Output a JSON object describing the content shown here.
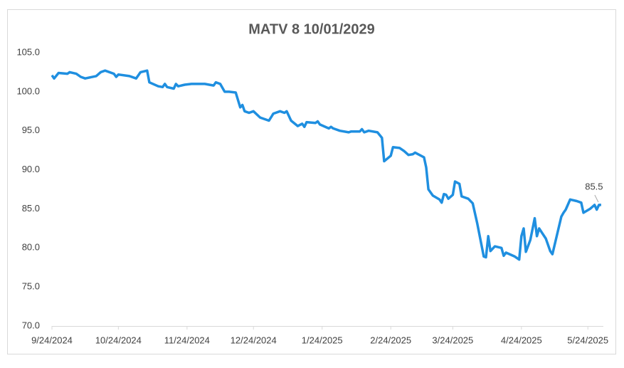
{
  "chart_data": {
    "type": "line",
    "title": "MATV 8 10/01/2029",
    "x": [
      "9/24/2024",
      "9/25/2024",
      "9/27/2024",
      "10/1/2024",
      "10/2/2024",
      "10/5/2024",
      "10/7/2024",
      "10/9/2024",
      "10/14/2024",
      "10/16/2024",
      "10/18/2024",
      "10/22/2024",
      "10/23/2024",
      "10/24/2024",
      "10/29/2024",
      "11/1/2024",
      "11/3/2024",
      "11/6/2024",
      "11/7/2024",
      "11/11/2024",
      "11/13/2024",
      "11/14/2024",
      "11/15/2024",
      "11/18/2024",
      "11/19/2024",
      "11/20/2024",
      "11/23/2024",
      "11/26/2024",
      "12/2/2024",
      "12/6/2024",
      "12/7/2024",
      "12/9/2024",
      "12/11/2024",
      "12/13/2024",
      "12/16/2024",
      "12/18/2024",
      "12/19/2024",
      "12/20/2024",
      "12/22/2024",
      "12/24/2024",
      "12/27/2024",
      "12/31/2024",
      "1/2/2025",
      "1/5/2025",
      "1/7/2025",
      "1/8/2025",
      "1/10/2025",
      "1/13/2025",
      "1/15/2025",
      "1/16/2025",
      "1/17/2025",
      "1/21/2025",
      "1/22/2025",
      "1/23/2025",
      "1/27/2025",
      "1/28/2025",
      "1/29/2025",
      "2/1/2025",
      "2/5/2025",
      "2/6/2025",
      "2/10/2025",
      "2/11/2025",
      "2/12/2025",
      "2/14/2025",
      "2/18/2025",
      "2/20/2025",
      "2/21/2025",
      "2/24/2025",
      "2/25/2025",
      "2/28/2025",
      "3/2/2025",
      "3/4/2025",
      "3/6/2025",
      "3/7/2025",
      "3/11/2025",
      "3/12/2025",
      "3/13/2025",
      "3/15/2025",
      "3/18/2025",
      "3/19/2025",
      "3/20/2025",
      "3/21/2025",
      "3/22/2025",
      "3/24/2025",
      "3/25/2025",
      "3/27/2025",
      "3/28/2025",
      "3/31/2025",
      "4/2/2025",
      "4/4/2025",
      "4/7/2025",
      "4/8/2025",
      "4/9/2025",
      "4/10/2025",
      "4/12/2025",
      "4/15/2025",
      "4/16/2025",
      "4/17/2025",
      "4/21/2025",
      "4/23/2025",
      "4/24/2025",
      "4/25/2025",
      "4/26/2025",
      "4/28/2025",
      "4/30/2025",
      "5/1/2025",
      "5/2/2025",
      "5/5/2025",
      "5/7/2025",
      "5/8/2025",
      "5/12/2025",
      "5/13/2025",
      "5/14/2025",
      "5/16/2025",
      "5/19/2025",
      "5/21/2025",
      "5/22/2025",
      "5/25/2025",
      "5/27/2025",
      "5/28/2025",
      "5/29/2025",
      "5/30/2025"
    ],
    "series": [
      {
        "color": "#1f8fe0",
        "values": [
          102.1,
          101.7,
          102.4,
          102.3,
          102.5,
          102.3,
          101.9,
          101.7,
          102.0,
          102.5,
          102.7,
          102.3,
          101.9,
          102.2,
          102.0,
          101.7,
          102.5,
          102.7,
          101.2,
          100.7,
          100.6,
          101.0,
          100.6,
          100.4,
          101.0,
          100.7,
          100.9,
          101.0,
          101.0,
          100.8,
          101.2,
          101.0,
          100.0,
          100.0,
          99.9,
          98.0,
          98.3,
          97.5,
          97.3,
          97.5,
          96.7,
          96.3,
          97.2,
          97.5,
          97.3,
          97.5,
          96.3,
          95.6,
          95.9,
          95.5,
          96.1,
          96.0,
          96.2,
          95.8,
          95.3,
          95.5,
          95.3,
          95.0,
          94.8,
          94.9,
          94.9,
          95.2,
          94.8,
          95.0,
          94.8,
          94.1,
          91.1,
          91.8,
          92.9,
          92.8,
          92.4,
          91.9,
          92.0,
          92.2,
          91.6,
          90.3,
          87.5,
          86.7,
          86.2,
          85.8,
          86.9,
          86.8,
          86.3,
          86.8,
          88.5,
          88.2,
          86.6,
          86.3,
          85.7,
          83.2,
          78.9,
          78.8,
          81.5,
          79.6,
          80.2,
          80.0,
          79.0,
          79.4,
          78.9,
          78.5,
          81.5,
          82.5,
          79.5,
          81.0,
          83.8,
          81.5,
          82.5,
          81.2,
          79.6,
          79.2,
          84.0,
          84.5,
          84.9,
          86.2,
          86.0,
          85.8,
          84.5,
          85.0,
          85.5,
          84.9,
          85.5,
          85.5
        ]
      }
    ],
    "annotations": [
      {
        "x": "5/30/2025",
        "value": 85.5
      }
    ],
    "xlim": [
      "9/24/2024",
      "5/31/2025"
    ],
    "xticks": [
      "9/24/2024",
      "10/24/2024",
      "11/24/2024",
      "12/24/2024",
      "1/24/2025",
      "2/24/2025",
      "3/24/2025",
      "4/24/2025",
      "5/24/2025"
    ],
    "ylim": [
      70,
      105
    ],
    "yticks": [
      {
        "value": 70,
        "label": "70.0"
      },
      {
        "value": 75,
        "label": "75.0"
      },
      {
        "value": 80,
        "label": "80.0"
      },
      {
        "value": 85,
        "label": "85.0"
      },
      {
        "value": 90,
        "label": "90.0"
      },
      {
        "value": 95,
        "label": "95.0"
      },
      {
        "value": 100,
        "label": "100.0"
      },
      {
        "value": 105,
        "label": "105.0"
      }
    ],
    "grid": false
  }
}
